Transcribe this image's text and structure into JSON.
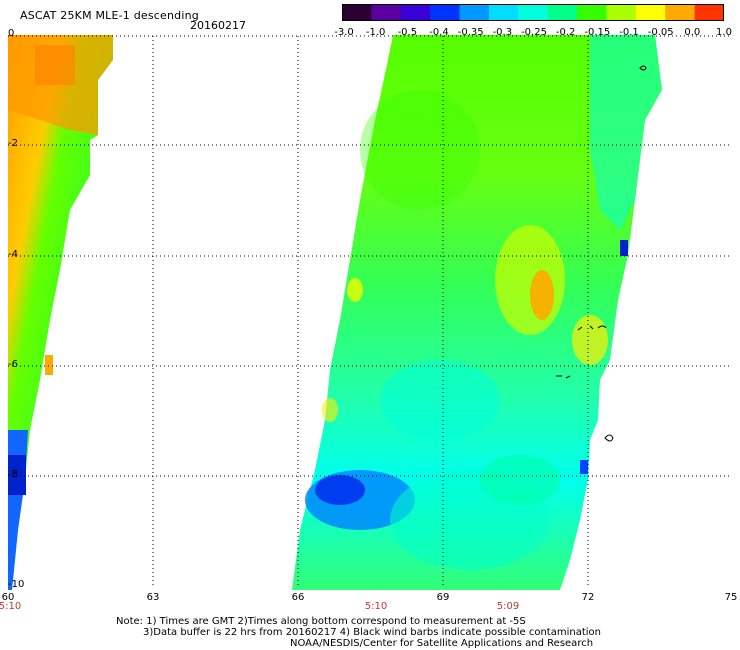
{
  "header": {
    "title": "ASCAT 25KM MLE-1 descending",
    "date": "20160217"
  },
  "colorbar": {
    "labels": [
      "-3.0",
      "-1.0",
      "-0.5",
      "-0.4",
      "-0.35",
      "-0.3",
      "-0.25",
      "-0.2",
      "-0.15",
      "-0.1",
      "-0.05",
      "0.0",
      "1.0"
    ],
    "colors": [
      "#2a0033",
      "#5a00a0",
      "#3a00d8",
      "#0033ff",
      "#0099ff",
      "#00ddff",
      "#00ffdd",
      "#00ff88",
      "#33ff00",
      "#aaff00",
      "#ffff00",
      "#ffaa00",
      "#ff3300"
    ]
  },
  "axes": {
    "x_ticks": [
      "60",
      "63",
      "66",
      "69",
      "72",
      "75"
    ],
    "y_ticks": [
      "0",
      "-2",
      "-4",
      "-6",
      "-8",
      "-10"
    ],
    "time_labels": [
      "5:10",
      "5:10",
      "5:09"
    ]
  },
  "footer": {
    "line1": "Note: 1) Times are GMT 2)Times along bottom correspond to measurement at -5S",
    "line2": "3)Data buffer is 22 hrs from 20160217 4) Black wind barbs indicate possible contamination",
    "line3": "NOAA/NESDIS/Center for Satellite Applications and Research"
  }
}
